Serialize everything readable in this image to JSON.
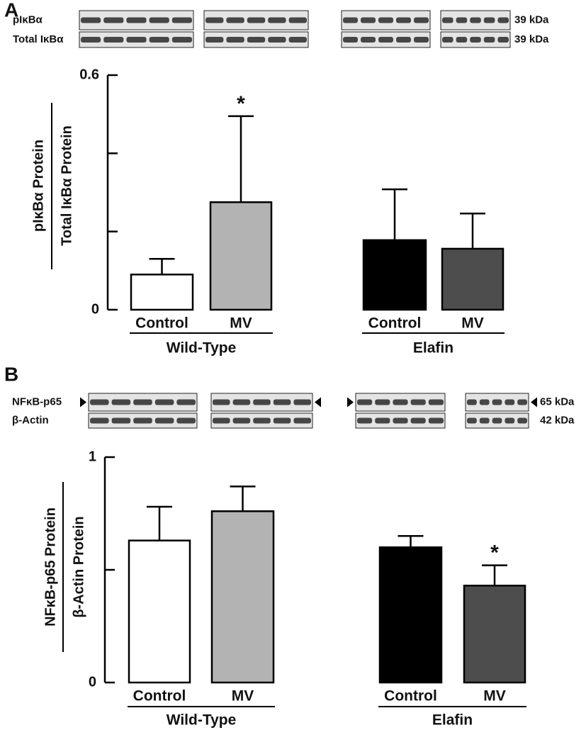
{
  "chart_data": [
    {
      "type": "bar",
      "panel": "A",
      "blots": [
        {
          "label": "pIκBα",
          "size": "39 kDa"
        },
        {
          "label": "Total IκBα",
          "size": "39 kDa"
        }
      ],
      "y_label": {
        "numerator": "pIκBα Protein",
        "denominator": "Total IκBα Protein"
      },
      "categories": [
        "Control",
        "MV",
        "Control",
        "MV"
      ],
      "groups": [
        {
          "label": "Wild-Type",
          "members": [
            0,
            1
          ]
        },
        {
          "label": "Elafin",
          "members": [
            2,
            3
          ]
        }
      ],
      "values": [
        0.09,
        0.275,
        0.178,
        0.156
      ],
      "errors": [
        0.04,
        0.22,
        0.13,
        0.09
      ],
      "colors": [
        "#ffffff",
        "#b3b3b3",
        "#000000",
        "#4d4d4d"
      ],
      "annotations": [
        {
          "text": "*",
          "index": 1
        }
      ],
      "ylim": [
        0,
        0.6
      ],
      "yticks": [
        0,
        0.6
      ],
      "minor_yticks": [
        0.2,
        0.4
      ]
    },
    {
      "type": "bar",
      "panel": "B",
      "blots": [
        {
          "label": "NFκB-p65",
          "size": "65 kDa"
        },
        {
          "label": "β-Actin",
          "size": "42 kDa"
        }
      ],
      "y_label": {
        "numerator": "NFκB-p65 Protein",
        "denominator": "β-Actin Protein"
      },
      "categories": [
        "Control",
        "MV",
        "Control",
        "MV"
      ],
      "groups": [
        {
          "label": "Wild-Type",
          "members": [
            0,
            1
          ]
        },
        {
          "label": "Elafin",
          "members": [
            2,
            3
          ]
        }
      ],
      "values": [
        0.63,
        0.76,
        0.6,
        0.43
      ],
      "errors": [
        0.15,
        0.11,
        0.05,
        0.09
      ],
      "colors": [
        "#ffffff",
        "#b3b3b3",
        "#000000",
        "#4d4d4d"
      ],
      "annotations": [
        {
          "text": "*",
          "index": 3
        }
      ],
      "ylim": [
        0,
        1
      ],
      "yticks": [
        0,
        1
      ],
      "minor_yticks": [
        0.5
      ]
    }
  ]
}
